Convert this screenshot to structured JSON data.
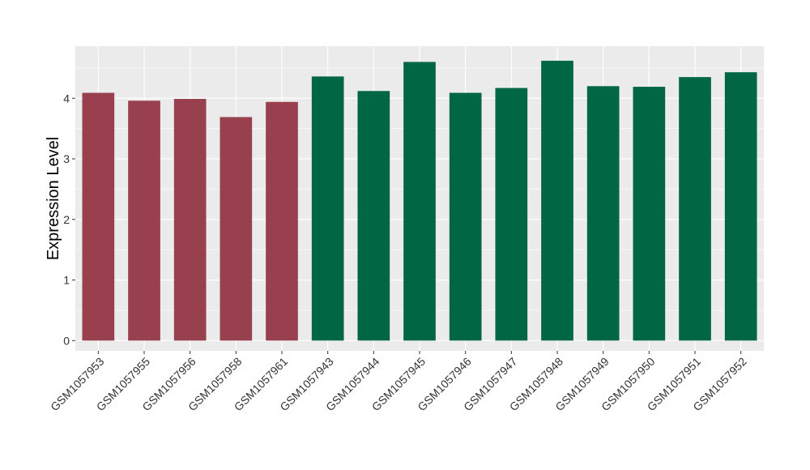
{
  "chart_data": {
    "type": "bar",
    "xlabel": "",
    "ylabel": "Expression Level",
    "ylim": [
      -0.17,
      4.86
    ],
    "yticks": [
      0,
      1,
      2,
      3,
      4
    ],
    "grid": true,
    "legend": "none",
    "panel_background": "#ebebeb",
    "grid_color": "#ffffff",
    "categories": [
      "GSM1057953",
      "GSM1057955",
      "GSM1057956",
      "GSM1057958",
      "GSM1057961",
      "GSM1057943",
      "GSM1057944",
      "GSM1057945",
      "GSM1057946",
      "GSM1057947",
      "GSM1057948",
      "GSM1057949",
      "GSM1057950",
      "GSM1057951",
      "GSM1057952"
    ],
    "values": [
      4.09,
      3.96,
      3.99,
      3.69,
      3.94,
      4.36,
      4.12,
      4.6,
      4.09,
      4.17,
      4.62,
      4.2,
      4.19,
      4.35,
      4.43
    ],
    "bar_colors": [
      "#99404f",
      "#99404f",
      "#99404f",
      "#99404f",
      "#99404f",
      "#006644",
      "#006644",
      "#006644",
      "#006644",
      "#006644",
      "#006644",
      "#006644",
      "#006644",
      "#006644",
      "#006644"
    ]
  }
}
